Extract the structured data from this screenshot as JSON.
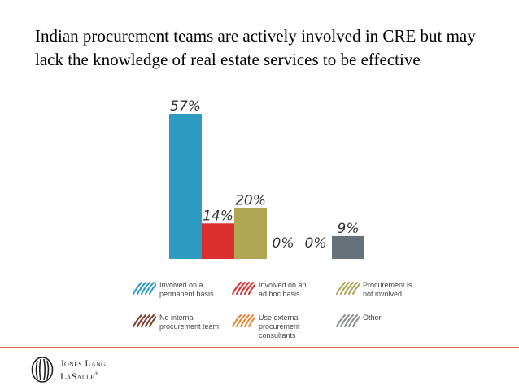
{
  "slide": {
    "title": "Indian procurement teams are actively involved in CRE but may lack the knowledge of real estate services to be effective"
  },
  "chart_data": {
    "type": "bar",
    "categories": [
      "Involved on a permanent basis",
      "Involved on an ad hoc basis",
      "Procurement is not involved",
      "No internal procurement team",
      "Use external procurement consultants",
      "Other"
    ],
    "values": [
      57,
      14,
      20,
      0,
      0,
      9
    ],
    "data_labels": [
      "57%",
      "14%",
      "20%",
      "0%",
      "0%",
      "9%"
    ],
    "colors": [
      "#2e9cc2",
      "#dc3030",
      "#b0a653",
      "#7b3f2e",
      "#e3893c",
      "#66717a"
    ],
    "ylim": [
      0,
      60
    ],
    "grid": false,
    "legend_position": "bottom"
  },
  "legend": {
    "items": [
      {
        "label": "Involved on a\npermanent basis",
        "color": "#2e9cc2"
      },
      {
        "label": "Involved on an\nad hoc basis",
        "color": "#dc3030"
      },
      {
        "label": "Procurement is\nnot involved",
        "color": "#b0a653"
      },
      {
        "label": "No internal\nprocurement team",
        "color": "#7b3f2e"
      },
      {
        "label": "Use external\nprocurement\nconsultants",
        "color": "#e3893c"
      },
      {
        "label": "Other",
        "color": "#8c8f93"
      }
    ]
  },
  "footer": {
    "logo_line1": "Jones Lang",
    "logo_line2": "LaSalle",
    "logo_mark": "®",
    "rule_color": "#d96a5a"
  }
}
